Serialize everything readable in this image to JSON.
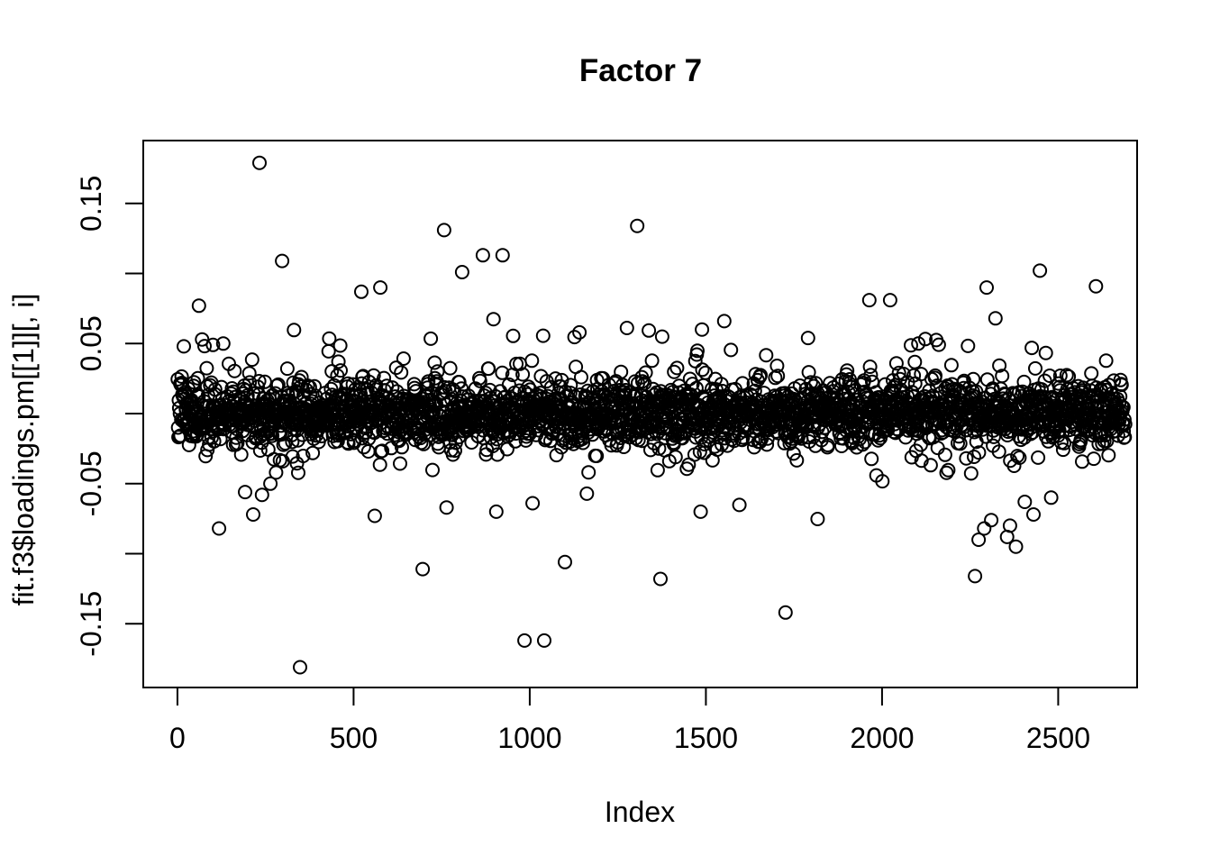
{
  "window": {
    "background": "#ffffff",
    "foreground": "#000000"
  },
  "chart_data": {
    "type": "scatter",
    "title": "Factor 7",
    "xlabel": "Index",
    "ylabel": "fit.f3$loadings.pm[[1]][, i]",
    "x_axis": {
      "ticks": [
        {
          "value": 0,
          "label": "0"
        },
        {
          "value": 500,
          "label": "500"
        },
        {
          "value": 1000,
          "label": "1000"
        },
        {
          "value": 1500,
          "label": "1500"
        },
        {
          "value": 2000,
          "label": "2000"
        },
        {
          "value": 2500,
          "label": "2500"
        }
      ]
    },
    "y_axis": {
      "ticks": [
        -0.15,
        -0.1,
        -0.05,
        0,
        0.05,
        0.1,
        0.15
      ],
      "labeled_ticks": [
        {
          "value": 0.15,
          "label": "0.15"
        },
        {
          "value": 0.05,
          "label": "0.05"
        },
        {
          "value": -0.05,
          "label": "-0.05"
        },
        {
          "value": -0.15,
          "label": "-0.15"
        }
      ]
    },
    "xlim": [
      -97,
      2724
    ],
    "ylim": [
      -0.1955,
      0.1949
    ],
    "grid": false,
    "legend": "none",
    "marker": {
      "shape": "open-circle",
      "radius_px": 7,
      "stroke_px": 2,
      "color": "#000000"
    },
    "n_points": 2690,
    "x_description": "x = observation index 1..n_points; y = posterior-mean loading, dense band centered at 0",
    "band": {
      "mean": 0,
      "seed": 7,
      "mixture": [
        {
          "weight": 0.78,
          "sd": 0.0105
        },
        {
          "weight": 0.16,
          "sd": 0.019
        },
        {
          "weight": 0.06,
          "sd": 0.031
        }
      ],
      "clip": [
        -0.186,
        0.186
      ]
    },
    "outliers": [
      [
        233,
        0.179
      ],
      [
        1305,
        0.134
      ],
      [
        757,
        0.131
      ],
      [
        297,
        0.109
      ],
      [
        867,
        0.113
      ],
      [
        923,
        0.113
      ],
      [
        808,
        0.101
      ],
      [
        2448,
        0.102
      ],
      [
        522,
        0.087
      ],
      [
        576,
        0.09
      ],
      [
        61,
        0.077
      ],
      [
        2297,
        0.09
      ],
      [
        1964,
        0.081
      ],
      [
        2023,
        0.081
      ],
      [
        2322,
        0.068
      ],
      [
        1552,
        0.066
      ],
      [
        1489,
        0.06
      ],
      [
        1790,
        0.054
      ],
      [
        2103,
        0.05
      ],
      [
        130,
        0.05
      ],
      [
        18,
        0.048
      ],
      [
        348,
        -0.181
      ],
      [
        985,
        -0.162
      ],
      [
        1041,
        -0.162
      ],
      [
        696,
        -0.111
      ],
      [
        1100,
        -0.106
      ],
      [
        1371,
        -0.118
      ],
      [
        1726,
        -0.142
      ],
      [
        2264,
        -0.116
      ],
      [
        2380,
        -0.095
      ],
      [
        2274,
        -0.09
      ],
      [
        118,
        -0.082
      ],
      [
        2363,
        -0.08
      ],
      [
        2290,
        -0.082
      ],
      [
        2310,
        -0.076
      ],
      [
        2430,
        -0.072
      ],
      [
        215,
        -0.072
      ],
      [
        2405,
        -0.063
      ],
      [
        192,
        -0.056
      ],
      [
        240,
        -0.058
      ],
      [
        264,
        -0.05
      ],
      [
        560,
        -0.073
      ],
      [
        764,
        -0.067
      ],
      [
        905,
        -0.07
      ],
      [
        1008,
        -0.064
      ],
      [
        2480,
        -0.06
      ],
      [
        2355,
        -0.088
      ]
    ]
  }
}
